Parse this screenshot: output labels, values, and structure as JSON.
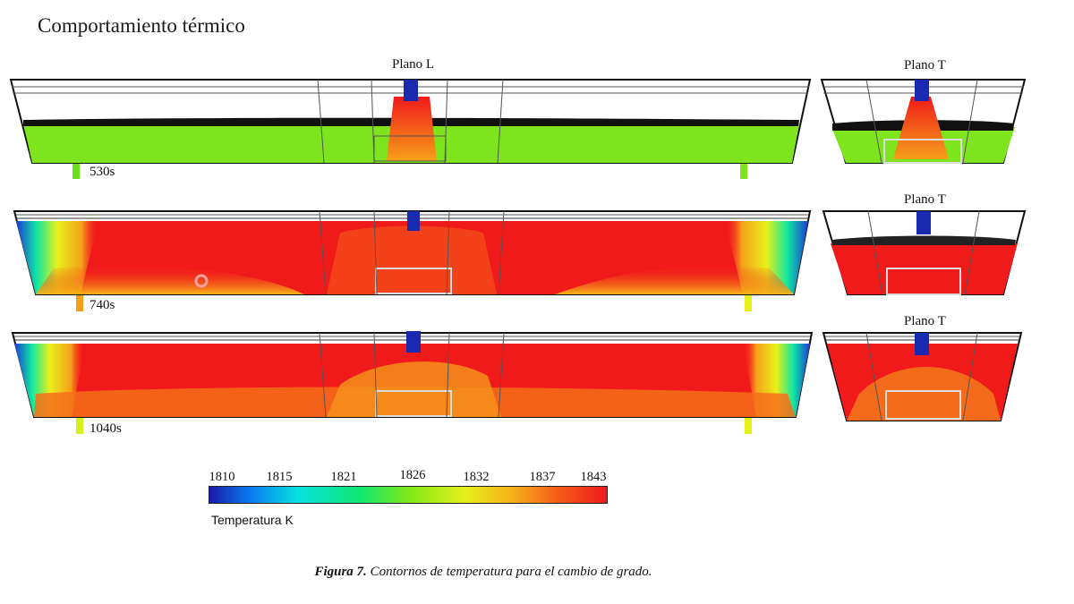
{
  "slide": {
    "title": "Comportamiento térmico"
  },
  "figure": {
    "plane_labels": {
      "longitudinal": "Plano L",
      "transverse": "Plano T"
    },
    "times": [
      "530s",
      "740s",
      "1040s"
    ],
    "colorbar": {
      "ticks": [
        "1810",
        "1815",
        "1821",
        "1826",
        "1832",
        "1837",
        "1843"
      ],
      "label": "Temperatura K",
      "colors": [
        "#1a1aa8",
        "#0a78f0",
        "#06e0e0",
        "#10e870",
        "#7ee81a",
        "#e4f01a",
        "#f6b21a",
        "#f55a1a",
        "#f01a1a"
      ]
    },
    "caption": {
      "number": "Figura 7.",
      "text": " Contornos de temperatura para el cambio de grado."
    }
  }
}
